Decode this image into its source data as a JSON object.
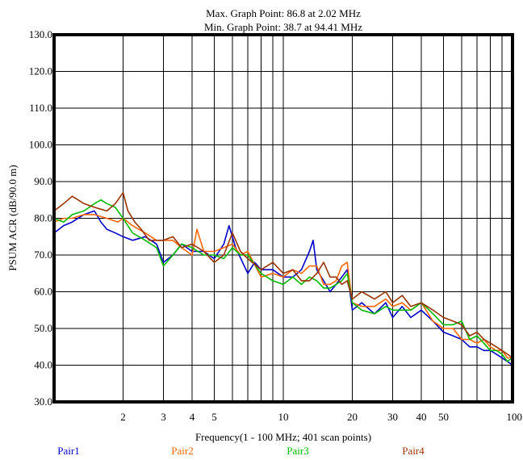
{
  "chart_data": {
    "type": "line",
    "title_lines": [
      "Max. Graph Point: 86.8 at 2.02 MHz",
      "Min. Graph Point: 38.7 at 94.41 MHz"
    ],
    "xlabel": "Frequency(1 - 100 MHz; 401 scan points)",
    "ylabel": "PSUM ACR (dB/90.0 m)",
    "x_scale": "log",
    "xlim": [
      1,
      100
    ],
    "ylim": [
      30,
      130
    ],
    "grid": true,
    "legend_position": "bottom",
    "y_ticks": [
      "30.0",
      "40.0",
      "50.0",
      "60.0",
      "70.0",
      "80.0",
      "90.0",
      "100.0",
      "110.0",
      "120.0",
      "130.0"
    ],
    "x_ticks": [
      {
        "value": 2,
        "label": "2"
      },
      {
        "value": 3,
        "label": "3"
      },
      {
        "value": 4,
        "label": "4"
      },
      {
        "value": 5,
        "label": "5"
      },
      {
        "value": 10,
        "label": "10"
      },
      {
        "value": 20,
        "label": "20"
      },
      {
        "value": 30,
        "label": "30"
      },
      {
        "value": 40,
        "label": "40"
      },
      {
        "value": 50,
        "label": "50"
      },
      {
        "value": 100,
        "label": "100"
      }
    ],
    "x_gridlines": [
      2,
      3,
      4,
      5,
      6,
      7,
      8,
      9,
      10,
      20,
      30,
      40,
      50,
      60,
      70,
      80,
      90
    ],
    "series": [
      {
        "name": "Pair1",
        "color": "#0000cc",
        "x": [
          1,
          1.1,
          1.2,
          1.35,
          1.5,
          1.6,
          1.7,
          1.85,
          2,
          2.2,
          2.5,
          2.8,
          3,
          3.3,
          3.6,
          4,
          4.5,
          5,
          5.5,
          5.8,
          6.2,
          7,
          7.5,
          8,
          9,
          10,
          11,
          12,
          13,
          13.5,
          14,
          15,
          16,
          17,
          18,
          19,
          20,
          22,
          25,
          28,
          30,
          33,
          36,
          40,
          45,
          50,
          55,
          60,
          65,
          70,
          75,
          80,
          85,
          90,
          95,
          100
        ],
        "y": [
          76,
          78,
          79,
          81,
          82,
          79,
          77,
          76,
          75,
          74,
          75,
          73,
          68,
          70,
          73,
          71,
          71,
          69,
          73,
          78,
          72,
          65,
          68,
          66,
          66,
          64,
          64,
          66,
          71,
          74,
          66,
          63,
          60,
          62,
          64,
          66,
          55,
          57,
          54,
          57,
          53,
          56,
          53,
          55,
          52,
          49,
          48,
          47,
          45,
          45,
          44,
          44,
          43,
          42,
          41,
          40
        ]
      },
      {
        "name": "Pair2",
        "color": "#ff6600",
        "x": [
          1,
          1.1,
          1.2,
          1.35,
          1.5,
          1.7,
          1.9,
          2,
          2.2,
          2.5,
          2.8,
          3,
          3.3,
          3.6,
          4,
          4.2,
          4.5,
          5,
          5.5,
          6,
          6.5,
          7,
          8,
          9,
          10,
          11,
          12,
          13,
          14,
          15,
          16,
          17,
          18,
          19,
          20,
          22,
          25,
          28,
          30,
          33,
          36,
          40,
          45,
          50,
          55,
          60,
          65,
          70,
          75,
          80,
          85,
          90,
          95,
          100
        ],
        "y": [
          79,
          80,
          80,
          81,
          81,
          80,
          79,
          80,
          78,
          76,
          74,
          74,
          74,
          72,
          70,
          77,
          71,
          71,
          72,
          73,
          70,
          71,
          64,
          65,
          64,
          66,
          65,
          67,
          67,
          62,
          62,
          63,
          67,
          68,
          57,
          56,
          56,
          58,
          56,
          57,
          55,
          57,
          52,
          50,
          50,
          47,
          47,
          46,
          47,
          45,
          44,
          44,
          42,
          42
        ]
      },
      {
        "name": "Pair3",
        "color": "#00bb00",
        "x": [
          1,
          1.1,
          1.2,
          1.35,
          1.5,
          1.6,
          1.7,
          1.85,
          2,
          2.2,
          2.5,
          2.8,
          3,
          3.3,
          3.6,
          4,
          4.5,
          5,
          5.5,
          6,
          6.5,
          7,
          8,
          9,
          10,
          11,
          12,
          13,
          14,
          15,
          16,
          17,
          18,
          19,
          20,
          22,
          25,
          28,
          30,
          33,
          36,
          40,
          45,
          50,
          55,
          60,
          65,
          70,
          75,
          80,
          85,
          90,
          95,
          100
        ],
        "y": [
          80,
          79,
          81,
          82,
          84,
          85,
          84,
          83,
          80,
          76,
          74,
          72,
          67,
          70,
          73,
          72,
          70,
          70,
          69,
          72,
          70,
          70,
          65,
          63,
          62,
          64,
          62,
          64,
          63,
          61,
          61,
          62,
          63,
          65,
          57,
          55,
          54,
          56,
          55,
          55,
          55,
          57,
          54,
          51,
          51,
          52,
          47,
          48,
          46,
          44,
          44,
          43,
          41,
          42
        ]
      },
      {
        "name": "Pair4",
        "color": "#993300",
        "x": [
          1,
          1.1,
          1.2,
          1.35,
          1.5,
          1.7,
          1.85,
          2,
          2.1,
          2.25,
          2.4,
          2.6,
          3,
          3.3,
          3.6,
          4,
          4.5,
          5,
          5.5,
          6,
          6.5,
          7,
          8,
          9,
          10,
          11,
          12,
          13,
          14,
          15,
          16,
          17,
          18,
          19,
          20,
          22,
          25,
          28,
          30,
          33,
          36,
          40,
          45,
          50,
          55,
          60,
          65,
          70,
          75,
          80,
          85,
          90,
          95,
          100
        ],
        "y": [
          82,
          84,
          86,
          84,
          83,
          82,
          84,
          87,
          82,
          79,
          77,
          74,
          74,
          75,
          72,
          73,
          71,
          68,
          70,
          76,
          71,
          69,
          66,
          68,
          65,
          66,
          63,
          63,
          65,
          68,
          64,
          64,
          62,
          63,
          58,
          60,
          58,
          60,
          57,
          59,
          56,
          57,
          55,
          53,
          52,
          51,
          48,
          49,
          47,
          46,
          45,
          44,
          43,
          42
        ]
      }
    ]
  }
}
